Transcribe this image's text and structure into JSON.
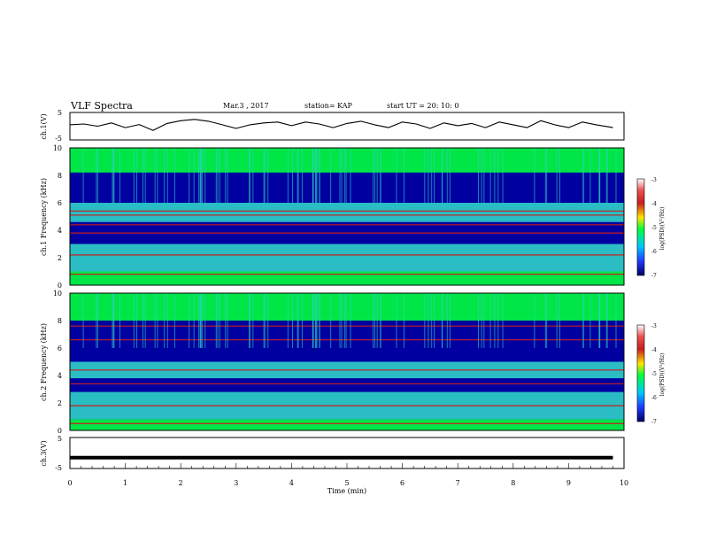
{
  "header": {
    "title": "VLF Spectra",
    "date": "Mar.3 , 2017",
    "station": "station= KAP",
    "start": "start UT = 20: 10: 0"
  },
  "colorbar_label": "log(PSD)(V²/Hz)",
  "colorbar_ticks": [
    "-3",
    "-4",
    "-5",
    "-6",
    "-7"
  ],
  "colors": {
    "background": "#0000a0",
    "mid": "#2fd2c8",
    "high": "#00ff3c",
    "line_red": "#c81e1e"
  },
  "chart_data": [
    {
      "type": "line",
      "name": "ch1-waveform",
      "ylabel": "ch.1(V)",
      "ylim": [
        -5,
        5
      ],
      "yticks": [
        "5",
        "-5"
      ],
      "xlim": [
        0,
        10
      ],
      "x": [
        0,
        0.25,
        0.5,
        0.75,
        1.0,
        1.25,
        1.5,
        1.75,
        2.0,
        2.25,
        2.5,
        2.75,
        3.0,
        3.25,
        3.5,
        3.75,
        4.0,
        4.25,
        4.5,
        4.75,
        5.0,
        5.25,
        5.5,
        5.75,
        6.0,
        6.25,
        6.5,
        6.75,
        7.0,
        7.25,
        7.5,
        7.75,
        8.0,
        8.25,
        8.5,
        8.75,
        9.0,
        9.25,
        9.5,
        9.8
      ],
      "y": [
        0.5,
        0.8,
        0,
        1.2,
        -0.5,
        0.6,
        -1.5,
        1.0,
        2.0,
        2.5,
        1.8,
        0.5,
        -0.8,
        0.5,
        1.2,
        1.5,
        0.2,
        1.5,
        0.8,
        -0.5,
        1.0,
        1.8,
        0.5,
        -0.5,
        1.5,
        0.8,
        -0.8,
        1.2,
        0.2,
        1.0,
        -0.5,
        1.5,
        0.5,
        -0.5,
        2.0,
        0.5,
        -0.5,
        1.5,
        0.5,
        -0.5
      ]
    },
    {
      "type": "heatmap",
      "name": "ch1-spectrogram",
      "ylabel": "ch.1 Frequency (kHz)",
      "ylim": [
        0,
        10
      ],
      "yticks": [
        "0",
        "2",
        "4",
        "6",
        "8",
        "10"
      ],
      "xlim": [
        0,
        10
      ],
      "bands_khz": [
        {
          "from": 8.2,
          "to": 10.0,
          "level": "high"
        },
        {
          "from": 6.0,
          "to": 8.2,
          "level": "low"
        },
        {
          "from": 4.6,
          "to": 6.0,
          "level": "mid"
        },
        {
          "from": 3.0,
          "to": 4.0,
          "level": "low"
        },
        {
          "from": 1.0,
          "to": 3.0,
          "level": "mid"
        },
        {
          "from": 0.0,
          "to": 1.0,
          "level": "high"
        }
      ],
      "lines_khz": [
        0.8,
        2.2,
        3.8,
        4.4,
        5.1,
        5.4
      ]
    },
    {
      "type": "heatmap",
      "name": "ch2-spectrogram",
      "ylabel": "ch.2 Frequency (kHz)",
      "ylim": [
        0,
        10
      ],
      "yticks": [
        "0",
        "2",
        "4",
        "6",
        "8",
        "10"
      ],
      "xlim": [
        0,
        10
      ],
      "bands_khz": [
        {
          "from": 8.0,
          "to": 10.0,
          "level": "high"
        },
        {
          "from": 5.0,
          "to": 8.0,
          "level": "low"
        },
        {
          "from": 3.8,
          "to": 5.0,
          "level": "mid"
        },
        {
          "from": 2.8,
          "to": 3.6,
          "level": "low"
        },
        {
          "from": 0.8,
          "to": 2.8,
          "level": "mid"
        },
        {
          "from": 0.0,
          "to": 0.8,
          "level": "high"
        }
      ],
      "lines_khz": [
        0.5,
        1.8,
        3.4,
        4.4,
        6.6,
        7.6
      ]
    },
    {
      "type": "line",
      "name": "ch3-waveform",
      "ylabel": "ch.3(V)",
      "ylim": [
        -5,
        5
      ],
      "yticks": [
        "5",
        "-5"
      ],
      "xlabel": "Time (min)",
      "xlim": [
        0,
        10
      ],
      "xticks": [
        "0",
        "1",
        "2",
        "3",
        "4",
        "5",
        "6",
        "7",
        "8",
        "9",
        "10"
      ],
      "x": [
        0,
        9.8
      ],
      "y": [
        -1.5,
        -1.5
      ]
    }
  ]
}
